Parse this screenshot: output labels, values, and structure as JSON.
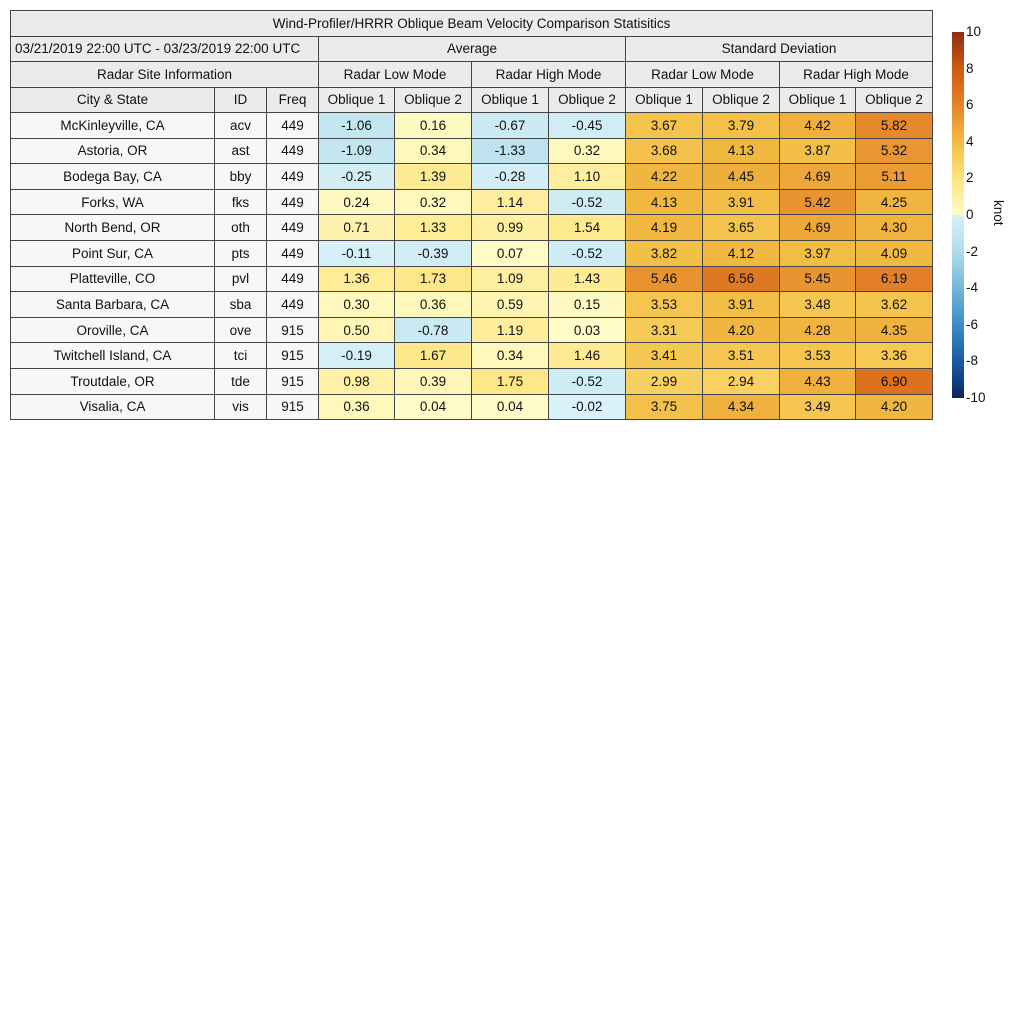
{
  "chart_data": {
    "type": "table",
    "title": "Wind-Profiler/HRRR Oblique Beam Velocity Comparison Statisitics",
    "date_range": "03/21/2019 22:00 UTC - 03/23/2019 22:00 UTC",
    "group_headers": [
      "Average",
      "Standard Deviation"
    ],
    "site_info_header": "Radar Site Information",
    "mode_headers": [
      "Radar Low Mode",
      "Radar High Mode",
      "Radar Low Mode",
      "Radar High Mode"
    ],
    "column_headers": [
      "City & State",
      "ID",
      "Freq",
      "Oblique 1",
      "Oblique 2",
      "Oblique 1",
      "Oblique 2",
      "Oblique 1",
      "Oblique 2",
      "Oblique 1",
      "Oblique 2"
    ],
    "rows": [
      {
        "city": "McKinleyville, CA",
        "id": "acv",
        "freq": "449",
        "values": [
          "-1.06",
          "0.16",
          "-0.67",
          "-0.45",
          "3.67",
          "3.79",
          "4.42",
          "5.82"
        ]
      },
      {
        "city": "Astoria, OR",
        "id": "ast",
        "freq": "449",
        "values": [
          "-1.09",
          "0.34",
          "-1.33",
          "0.32",
          "3.68",
          "4.13",
          "3.87",
          "5.32"
        ]
      },
      {
        "city": "Bodega Bay, CA",
        "id": "bby",
        "freq": "449",
        "values": [
          "-0.25",
          "1.39",
          "-0.28",
          "1.10",
          "4.22",
          "4.45",
          "4.69",
          "5.11"
        ]
      },
      {
        "city": "Forks, WA",
        "id": "fks",
        "freq": "449",
        "values": [
          "0.24",
          "0.32",
          "1.14",
          "-0.52",
          "4.13",
          "3.91",
          "5.42",
          "4.25"
        ]
      },
      {
        "city": "North Bend, OR",
        "id": "oth",
        "freq": "449",
        "values": [
          "0.71",
          "1.33",
          "0.99",
          "1.54",
          "4.19",
          "3.65",
          "4.69",
          "4.30"
        ]
      },
      {
        "city": "Point Sur, CA",
        "id": "pts",
        "freq": "449",
        "values": [
          "-0.11",
          "-0.39",
          "0.07",
          "-0.52",
          "3.82",
          "4.12",
          "3.97",
          "4.09"
        ]
      },
      {
        "city": "Platteville, CO",
        "id": "pvl",
        "freq": "449",
        "values": [
          "1.36",
          "1.73",
          "1.09",
          "1.43",
          "5.46",
          "6.56",
          "5.45",
          "6.19"
        ]
      },
      {
        "city": "Santa Barbara, CA",
        "id": "sba",
        "freq": "449",
        "values": [
          "0.30",
          "0.36",
          "0.59",
          "0.15",
          "3.53",
          "3.91",
          "3.48",
          "3.62"
        ]
      },
      {
        "city": "Oroville, CA",
        "id": "ove",
        "freq": "915",
        "values": [
          "0.50",
          "-0.78",
          "1.19",
          "0.03",
          "3.31",
          "4.20",
          "4.28",
          "4.35"
        ]
      },
      {
        "city": "Twitchell Island, CA",
        "id": "tci",
        "freq": "915",
        "values": [
          "-0.19",
          "1.67",
          "0.34",
          "1.46",
          "3.41",
          "3.51",
          "3.53",
          "3.36"
        ]
      },
      {
        "city": "Troutdale, OR",
        "id": "tde",
        "freq": "915",
        "values": [
          "0.98",
          "0.39",
          "1.75",
          "-0.52",
          "2.99",
          "2.94",
          "4.43",
          "6.90"
        ]
      },
      {
        "city": "Visalia, CA",
        "id": "vis",
        "freq": "915",
        "values": [
          "0.36",
          "0.04",
          "0.04",
          "-0.02",
          "3.75",
          "4.34",
          "3.49",
          "4.20"
        ]
      }
    ],
    "colorbar": {
      "label": "knot",
      "range": [
        -10,
        10
      ],
      "ticks": [
        "10",
        "8",
        "6",
        "4",
        "2",
        "0",
        "-2",
        "-4",
        "-6",
        "-8",
        "-10"
      ],
      "colors": {
        "-10": "#08285e",
        "-8": "#1a5aa3",
        "-6": "#3f8cc4",
        "-4": "#72b6d8",
        "-2": "#b0dcea",
        "0": "#d9f1f8",
        "0+": "#fffcc8",
        "2": "#fde47e",
        "4": "#f2bc42",
        "6": "#e5832a",
        "8": "#d05a10",
        "10": "#8a2c14"
      }
    }
  }
}
